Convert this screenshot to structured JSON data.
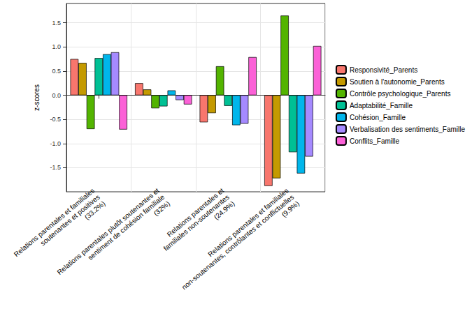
{
  "chart_data": {
    "type": "bar",
    "y_label": "z-scores",
    "categories": [
      "Relations parentales et familiales\nsoutenantes et positives\n(33.2%)",
      "Relations parentales plutôt soutenantes et\nsentiment de cohésion familiale\n(32%)",
      "Relations parentales et\nfamiliales non-soutenantes\n(24.9%)",
      "Relations parentales et familiales\nnon-soutenantes, contrôlantes et conflictuelles\n(9.9%)"
    ],
    "series": [
      {
        "name": "Responsivité_Parents",
        "color": "#F8766D",
        "values": [
          0.75,
          0.25,
          -0.56,
          -1.88
        ]
      },
      {
        "name": "Soutien à l'autonomie_Parents",
        "color": "#C49A00",
        "values": [
          0.67,
          0.12,
          -0.37,
          -1.72
        ]
      },
      {
        "name": "Contrôle psychologique_Parents",
        "color": "#53B400",
        "values": [
          -0.7,
          -0.27,
          0.6,
          1.65
        ]
      },
      {
        "name": "Adaptabilité_Famille",
        "color": "#00C094",
        "values": [
          0.77,
          -0.23,
          -0.22,
          -1.18
        ]
      },
      {
        "name": "Cohésion_Famille",
        "color": "#00B6EB",
        "values": [
          0.85,
          0.1,
          -0.62,
          -1.62
        ]
      },
      {
        "name": "Verbalisation des sentiments_Famille",
        "color": "#A58AFF",
        "values": [
          0.89,
          -0.1,
          -0.59,
          -1.27
        ]
      },
      {
        "name": "Conflits_Famille",
        "color": "#FB61D7",
        "values": [
          -0.71,
          -0.19,
          0.79,
          1.02
        ]
      }
    ],
    "ylim": [
      -2,
      1.9
    ],
    "yticks": [
      -1.5,
      {
        "value": -1,
        "label": "-1.0"
      },
      -0.5,
      {
        "value": 0,
        "label": "0.0"
      },
      0.5,
      {
        "value": 1,
        "label": "1.0"
      },
      1.5
    ],
    "grid": true,
    "legend": "right"
  }
}
